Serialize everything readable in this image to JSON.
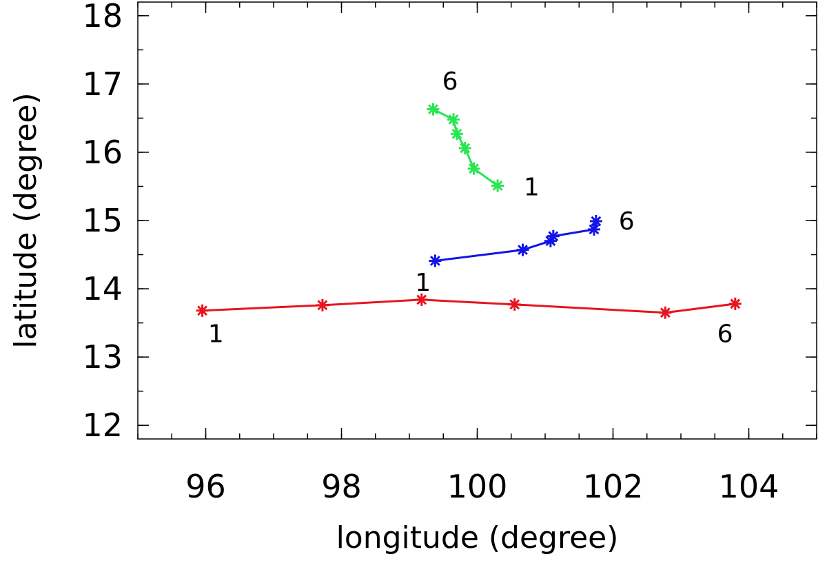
{
  "chart_data": {
    "type": "line",
    "title": "",
    "xlabel": "longitude (degree)",
    "ylabel": "latitude (degree)",
    "xlim": [
      95,
      105
    ],
    "ylim": [
      11.8,
      18.2
    ],
    "xticks": [
      96,
      98,
      100,
      102,
      104
    ],
    "yticks": [
      12,
      13,
      14,
      15,
      16,
      17,
      18
    ],
    "x_minor_step": 0.5,
    "y_minor_step": 0.5,
    "grid": false,
    "marker": "asterisk",
    "series": [
      {
        "color": "#e8141e",
        "x": [
          95.95,
          97.72,
          99.18,
          100.55,
          102.77,
          103.8
        ],
        "y": [
          13.68,
          13.76,
          13.84,
          13.77,
          13.65,
          13.78
        ],
        "labels": [
          {
            "text": "1",
            "x": 96.15,
            "y": 13.35
          },
          {
            "text": "6",
            "x": 103.65,
            "y": 13.35
          }
        ]
      },
      {
        "color": "#1414e6",
        "x": [
          99.38,
          100.67,
          101.08,
          101.12,
          101.72,
          101.75
        ],
        "y": [
          14.41,
          14.57,
          14.7,
          14.77,
          14.87,
          14.99
        ],
        "labels": [
          {
            "text": "1",
            "x": 99.2,
            "y": 14.1
          },
          {
            "text": "6",
            "x": 102.2,
            "y": 15.0
          }
        ]
      },
      {
        "color": "#28e650",
        "x": [
          99.35,
          99.65,
          99.7,
          99.82,
          99.95,
          100.3
        ],
        "y": [
          16.63,
          16.48,
          16.27,
          16.06,
          15.76,
          15.51
        ],
        "labels": [
          {
            "text": "1",
            "x": 100.8,
            "y": 15.5
          },
          {
            "text": "6",
            "x": 99.6,
            "y": 17.05
          }
        ]
      }
    ]
  }
}
